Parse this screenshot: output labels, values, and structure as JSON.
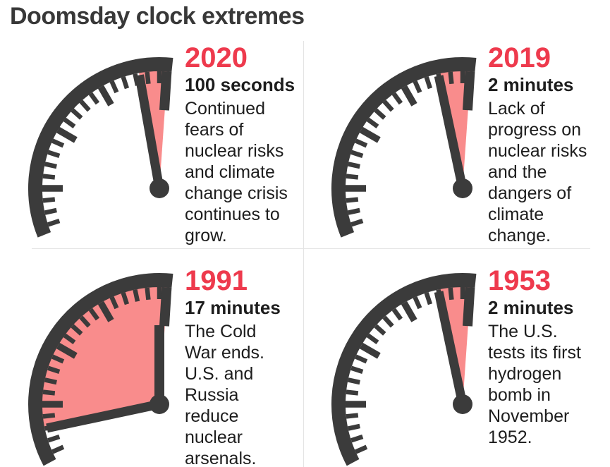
{
  "title": "Doomsday clock extremes",
  "colors": {
    "accent_red": "#ee3a4d",
    "wedge_pink": "#f98c8c",
    "clock_dark": "#3b3b3b",
    "divider_gray": "#e4e4e4",
    "text_dark": "#1d1d1d"
  },
  "chart_data": {
    "type": "clock-diagram",
    "title": "Doomsday clock extremes",
    "unit": "time remaining to midnight",
    "layout": "2x2 grid, each panel shows upper-left quadrant of a clock face with pink wedge from hand position to midnight",
    "clocks": [
      {
        "year": "2020",
        "time_label": "100 seconds",
        "minutes_to_midnight": 1.67,
        "description": "Continued fears of nuclear risks and climate change crisis continues to grow."
      },
      {
        "year": "2019",
        "time_label": "2 minutes",
        "minutes_to_midnight": 2,
        "description": "Lack of progress on nuclear risks and the dangers of climate change."
      },
      {
        "year": "1991",
        "time_label": "17 minutes",
        "minutes_to_midnight": 17,
        "description": "The Cold War ends. U.S. and Russia reduce nuclear arsenals."
      },
      {
        "year": "1953",
        "time_label": "2 minutes",
        "minutes_to_midnight": 2,
        "description": "The U.S. tests its first hydrogen bomb in November 1952."
      }
    ]
  }
}
